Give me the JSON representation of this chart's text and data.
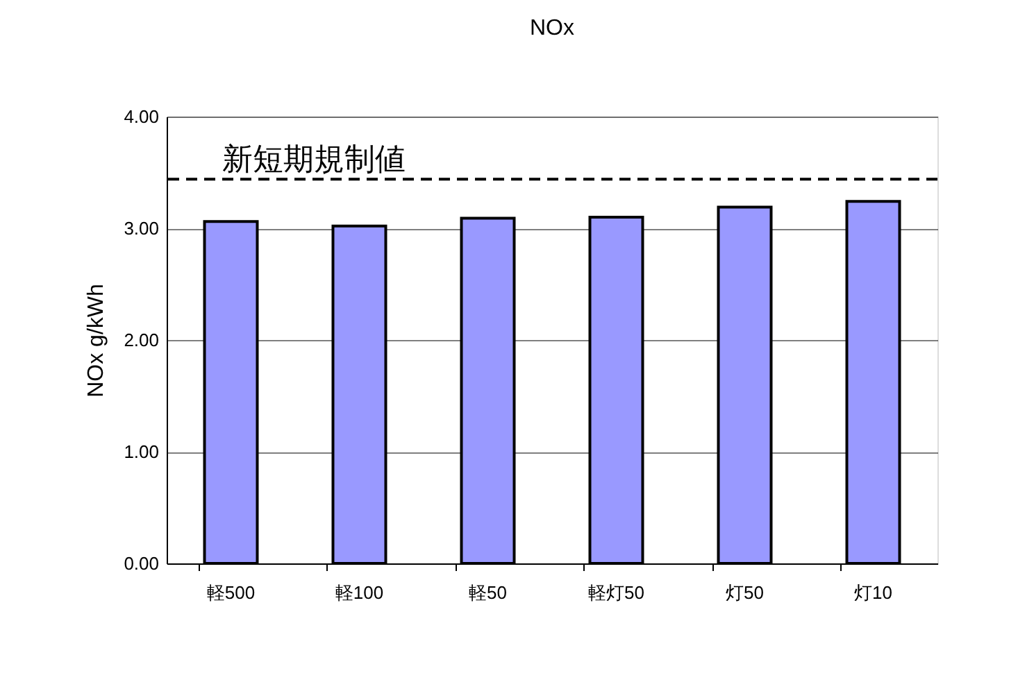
{
  "chart_data": {
    "type": "bar",
    "title": "NOx",
    "ylabel": "NOx g/kWh",
    "categories": [
      "軽500",
      "軽100",
      "軽50",
      "軽灯50",
      "灯50",
      "灯10"
    ],
    "values": [
      3.06,
      3.02,
      3.09,
      3.1,
      3.19,
      3.24
    ],
    "color": "#9999ff",
    "ylim": [
      0,
      4
    ],
    "yticks": [
      {
        "value": 0,
        "label": "0.00"
      },
      {
        "value": 1,
        "label": "1.00"
      },
      {
        "value": 2,
        "label": "2.00"
      },
      {
        "value": 3,
        "label": "3.00"
      },
      {
        "value": 4,
        "label": "4.00"
      }
    ],
    "grid": "y",
    "ref_lines": [
      {
        "axis": "y",
        "value": 3.44,
        "label": "新短期規制値",
        "color": "#000000",
        "line_style": "dashed"
      }
    ]
  }
}
